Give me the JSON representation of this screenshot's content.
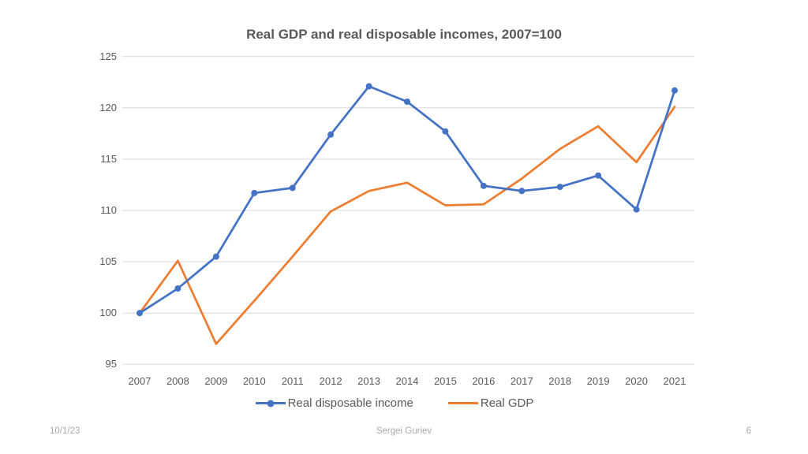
{
  "slide": {
    "footer": {
      "date": "10/1/23",
      "author": "Sergei Guriev",
      "page": "6"
    }
  },
  "chart_data": {
    "type": "line",
    "title": "Real GDP and real disposable incomes, 2007=100",
    "categories": [
      "2007",
      "2008",
      "2009",
      "2010",
      "2011",
      "2012",
      "2013",
      "2014",
      "2015",
      "2016",
      "2017",
      "2018",
      "2019",
      "2020",
      "2021"
    ],
    "series": [
      {
        "name": "Real disposable income",
        "color": "#4472C4",
        "marker": "circle",
        "values": [
          100,
          102.4,
          105.5,
          111.7,
          112.2,
          117.4,
          122.1,
          120.6,
          117.7,
          112.4,
          111.9,
          112.3,
          113.4,
          110.1,
          121.7
        ]
      },
      {
        "name": "Real GDP",
        "color": "#ED7D31",
        "marker": "none",
        "values": [
          100,
          105.1,
          97,
          101.2,
          105.5,
          109.9,
          111.9,
          112.7,
          110.5,
          110.6,
          113.1,
          116,
          118.2,
          114.7,
          120.1
        ]
      }
    ],
    "ylim": [
      95,
      125
    ],
    "ytick_step": 5,
    "grid": "horizontal",
    "gridline_color": "#D9D9D9",
    "legend_position": "bottom"
  }
}
